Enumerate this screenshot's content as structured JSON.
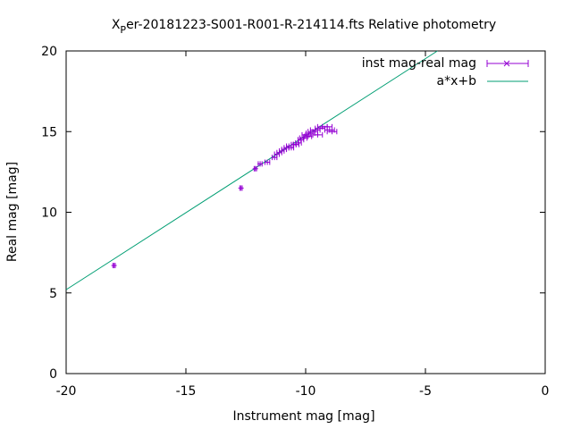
{
  "chart_data": {
    "type": "scatter",
    "title": "X_Per-20181223-S001-R001-R-214114.fts Relative photometry",
    "title_parts": {
      "first": "X",
      "sub": "P",
      "rest": "er-20181223-S001-R001-R-214114.fts Relative photometry"
    },
    "xlabel": "Instrument mag [mag]",
    "ylabel": "Real mag [mag]",
    "xlim": [
      -20,
      0
    ],
    "ylim": [
      0,
      20
    ],
    "x_ticks": [
      "-20",
      "-15",
      "-10",
      "-5",
      "0"
    ],
    "y_ticks": [
      "0",
      "5",
      "10",
      "15",
      "20"
    ],
    "grid": false,
    "legend_position": "top-right",
    "series": [
      {
        "name": "inst mag-real mag",
        "kind": "points-with-xerror",
        "color": "#9400d3",
        "points": [
          {
            "x": -18.0,
            "y": 6.7,
            "xerr": 0.05
          },
          {
            "x": -12.7,
            "y": 11.5,
            "xerr": 0.05
          },
          {
            "x": -12.1,
            "y": 12.7,
            "xerr": 0.05
          },
          {
            "x": -11.9,
            "y": 13.0,
            "xerr": 0.08
          },
          {
            "x": -11.6,
            "y": 13.1,
            "xerr": 0.1
          },
          {
            "x": -11.3,
            "y": 13.4,
            "xerr": 0.1
          },
          {
            "x": -11.2,
            "y": 13.6,
            "xerr": 0.1
          },
          {
            "x": -11.1,
            "y": 13.7,
            "xerr": 0.1
          },
          {
            "x": -11.0,
            "y": 13.8,
            "xerr": 0.1
          },
          {
            "x": -10.9,
            "y": 13.9,
            "xerr": 0.1
          },
          {
            "x": -10.8,
            "y": 14.0,
            "xerr": 0.1
          },
          {
            "x": -10.7,
            "y": 14.1,
            "xerr": 0.1
          },
          {
            "x": -10.6,
            "y": 14.0,
            "xerr": 0.1
          },
          {
            "x": -10.5,
            "y": 14.2,
            "xerr": 0.1
          },
          {
            "x": -10.4,
            "y": 14.2,
            "xerr": 0.12
          },
          {
            "x": -10.3,
            "y": 14.3,
            "xerr": 0.12
          },
          {
            "x": -10.2,
            "y": 14.5,
            "xerr": 0.12
          },
          {
            "x": -10.1,
            "y": 14.6,
            "xerr": 0.15
          },
          {
            "x": -10.0,
            "y": 14.8,
            "xerr": 0.15
          },
          {
            "x": -9.9,
            "y": 14.7,
            "xerr": 0.15
          },
          {
            "x": -9.8,
            "y": 14.9,
            "xerr": 0.18
          },
          {
            "x": -9.7,
            "y": 15.0,
            "xerr": 0.2
          },
          {
            "x": -9.6,
            "y": 15.1,
            "xerr": 0.2
          },
          {
            "x": -9.5,
            "y": 14.8,
            "xerr": 0.2
          },
          {
            "x": -9.4,
            "y": 15.2,
            "xerr": 0.2
          },
          {
            "x": -9.3,
            "y": 15.3,
            "xerr": 0.2
          },
          {
            "x": -9.1,
            "y": 15.3,
            "xerr": 0.2
          },
          {
            "x": -9.0,
            "y": 15.1,
            "xerr": 0.2
          },
          {
            "x": -8.9,
            "y": 15.0,
            "xerr": 0.2
          }
        ]
      },
      {
        "name": "a*x+b",
        "kind": "line",
        "color": "#009e73",
        "line_points": [
          {
            "x": -20.0,
            "y": 5.2
          },
          {
            "x": -4.5,
            "y": 20.0
          }
        ]
      }
    ]
  }
}
